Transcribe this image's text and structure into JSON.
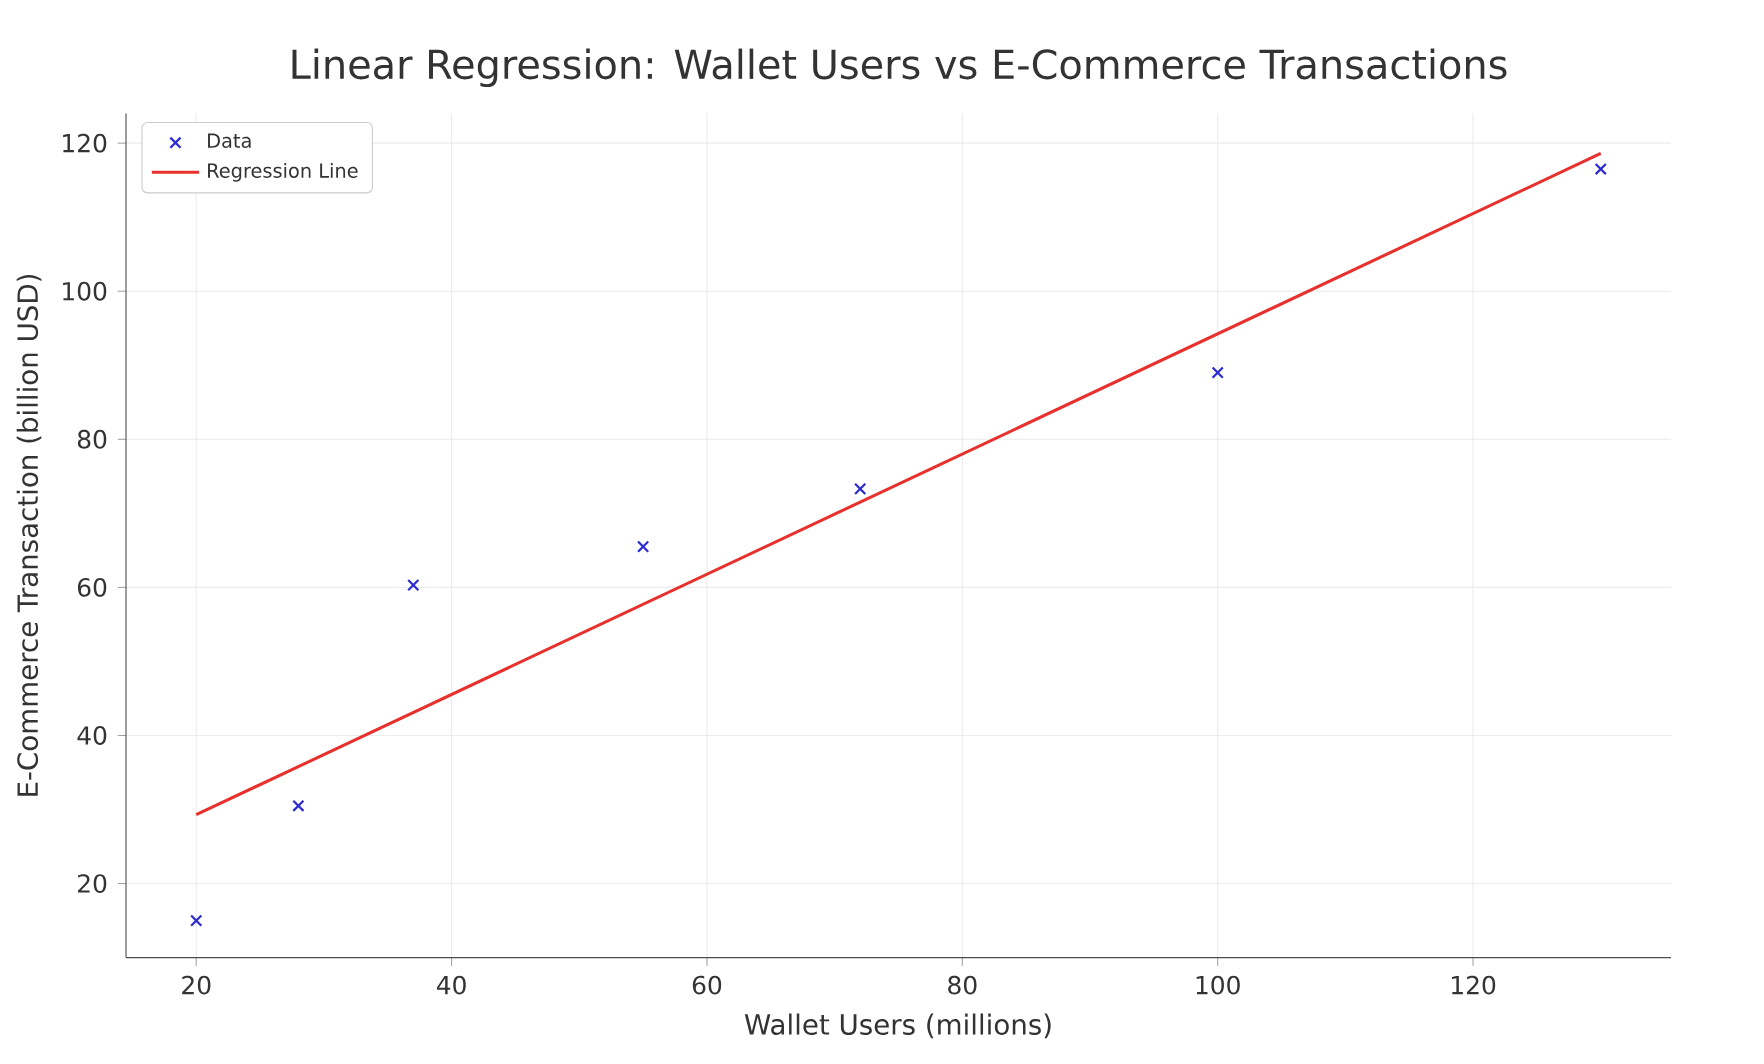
{
  "chart_data": {
    "type": "scatter",
    "title": "Linear Regression: Wallet Users vs E-Commerce Transactions",
    "xlabel": "Wallet Users (millions)",
    "ylabel": "E-Commerce Transaction (billion USD)",
    "xlim": [
      14.5,
      135.5
    ],
    "ylim": [
      10,
      124
    ],
    "xticks": [
      20,
      40,
      60,
      80,
      100,
      120
    ],
    "yticks": [
      20,
      40,
      60,
      80,
      100,
      120
    ],
    "grid": true,
    "legend": "top left",
    "series": [
      {
        "name": "Data",
        "marker": "cross",
        "color": "#2b2bd0",
        "x": [
          20,
          28,
          37,
          55,
          72,
          100,
          130
        ],
        "values": [
          15,
          30.5,
          60.3,
          65.5,
          73.3,
          89,
          116.5
        ]
      },
      {
        "name": "Regression Line",
        "type": "line",
        "line_style": "solid",
        "color": "#e8302c",
        "x": [
          20,
          130
        ],
        "values": [
          29.3,
          118.6
        ]
      }
    ]
  }
}
